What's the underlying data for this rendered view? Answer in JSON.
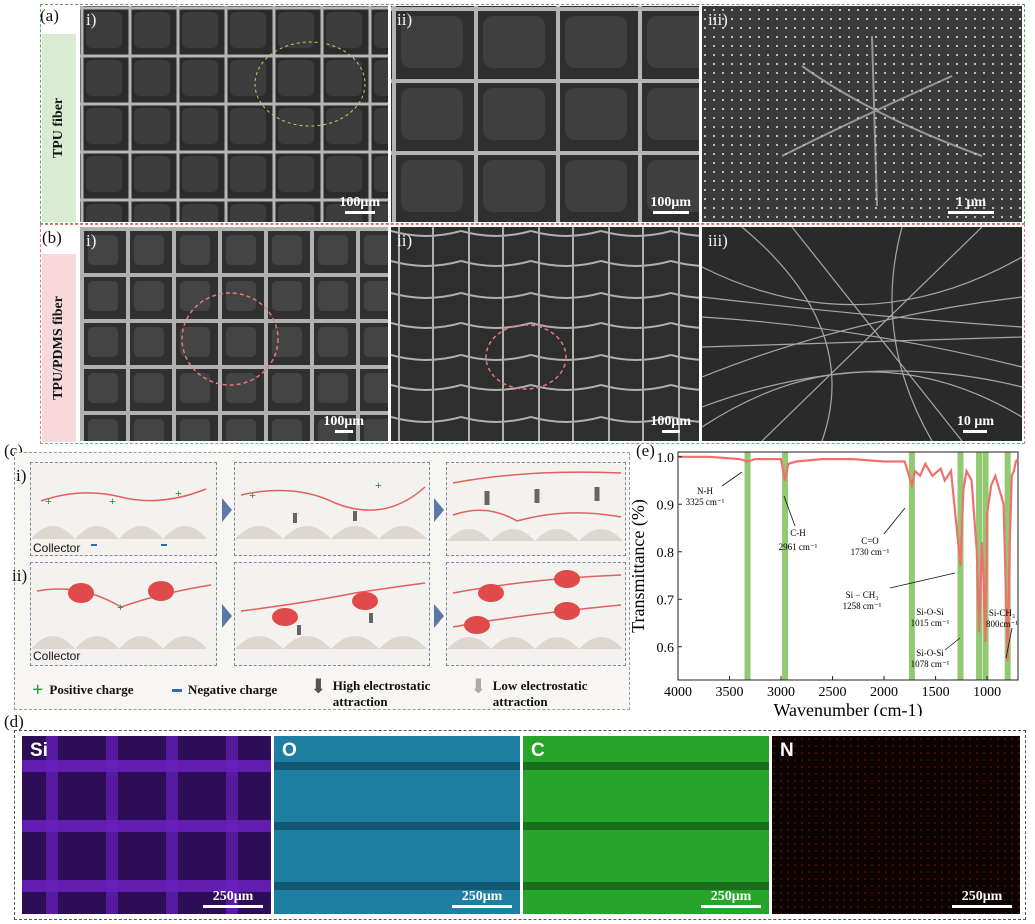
{
  "panel_a": {
    "label": "(a)",
    "side_label": "TPU fiber",
    "images": [
      {
        "sub": "i)",
        "scale": "100μm"
      },
      {
        "sub": "ii)",
        "scale": "100μm"
      },
      {
        "sub": "iii)",
        "scale": "1 μm"
      }
    ],
    "frame_color": "#5aa85a",
    "side_bg": "#d9ecd3"
  },
  "panel_b": {
    "label": "(b)",
    "side_label": "TPU/PDMS fiber",
    "images": [
      {
        "sub": "i)",
        "scale": "100μm"
      },
      {
        "sub": "ii)",
        "scale": "100μm"
      },
      {
        "sub": "iii)",
        "scale": "10 μm"
      }
    ],
    "frame_color": "#e07a7a",
    "side_bg": "#f7d9dc"
  },
  "panel_c": {
    "label": "(c)",
    "row_labels": [
      "i)",
      "ii)"
    ],
    "collector_label": "Collector",
    "legend": {
      "positive": "Positive charge",
      "negative": "Negative charge",
      "high": "High electrostatic attraction",
      "low": "Low electrostatic attraction"
    }
  },
  "panel_d": {
    "label": "(d)",
    "maps": [
      {
        "element": "Si",
        "scale": "250μm",
        "color": "#6a1fc0"
      },
      {
        "element": "O",
        "scale": "250μm",
        "color": "#2aa0c8"
      },
      {
        "element": "C",
        "scale": "250μm",
        "color": "#27b12a"
      },
      {
        "element": "N",
        "scale": "250μm",
        "color": "#8a1010"
      }
    ]
  },
  "panel_e": {
    "label": "(e)"
  },
  "chart_data": {
    "type": "line",
    "xlabel": "Wavenumber (cm-1)",
    "ylabel": "Transmittance (%)",
    "xlim": [
      4000,
      700
    ],
    "ylim": [
      0.53,
      1.01
    ],
    "xticks": [
      4000,
      3500,
      3000,
      2500,
      2000,
      1500,
      1000
    ],
    "yticks": [
      0.6,
      0.7,
      0.8,
      0.9,
      1.0
    ],
    "ytick_labels": [
      "0.6",
      "0.7",
      "0.8",
      "0.9",
      "1.0"
    ],
    "line_color": "#f07070",
    "band_color": "#7fbf5a",
    "bands": [
      3325,
      2961,
      1730,
      1258,
      1078,
      1015,
      800
    ],
    "x": [
      4000,
      3700,
      3400,
      3325,
      3250,
      3000,
      2961,
      2930,
      2850,
      2600,
      2300,
      2000,
      1800,
      1730,
      1700,
      1650,
      1600,
      1530,
      1450,
      1410,
      1350,
      1258,
      1230,
      1200,
      1150,
      1100,
      1078,
      1050,
      1030,
      1015,
      1000,
      960,
      920,
      880,
      840,
      800,
      780,
      760,
      740,
      720,
      700
    ],
    "y": [
      1.0,
      1.0,
      0.995,
      0.99,
      0.995,
      0.995,
      0.95,
      0.985,
      0.99,
      0.995,
      0.995,
      0.99,
      0.99,
      0.94,
      0.97,
      0.96,
      0.985,
      0.96,
      0.975,
      0.95,
      0.97,
      0.77,
      0.93,
      0.97,
      0.95,
      0.8,
      0.63,
      0.82,
      0.72,
      0.61,
      0.88,
      0.94,
      0.96,
      0.93,
      0.9,
      0.57,
      0.82,
      0.96,
      0.97,
      0.99,
      0.995
    ],
    "annotations": [
      {
        "text": "N-H",
        "value": "3325 cm⁻¹"
      },
      {
        "text": "C-H",
        "value": "2961 cm⁻¹"
      },
      {
        "text": "C=O",
        "value": "1730 cm⁻¹"
      },
      {
        "text": "Si − CH₃",
        "value": "1258 cm⁻¹"
      },
      {
        "text": "Si-O-Si",
        "value": "1015 cm⁻¹"
      },
      {
        "text": "Si-O-Si",
        "value": "1078 cm⁻¹"
      },
      {
        "text": "Si-CH₃",
        "value": "800cm⁻¹"
      }
    ]
  }
}
